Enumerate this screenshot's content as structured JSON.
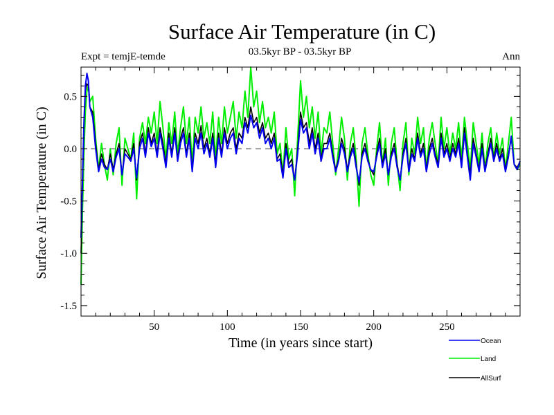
{
  "chart_data": {
    "type": "line",
    "title": "Surface Air Temperature (in C)",
    "subtitle": "03.5kyr BP - 03.5kyr BP",
    "left_label": "Expt = temjE-temde",
    "right_label": "Ann",
    "xlabel": "Time (in years since start)",
    "ylabel": "Surface Air Temperature (in C)",
    "xlim": [
      0,
      300
    ],
    "ylim": [
      -1.6,
      0.78
    ],
    "x_ticks": [
      50,
      100,
      150,
      200,
      250
    ],
    "x_tick_labels": [
      "50",
      "100",
      "150",
      "200",
      "250"
    ],
    "y_ticks": [
      0.5,
      0.0,
      -0.5,
      -1.0,
      -1.5
    ],
    "y_tick_labels": [
      "0.5",
      "0.0",
      "-0.5",
      "-1.0",
      "-1.5"
    ],
    "reference_line": 0.0,
    "legend_position": "bottom-right",
    "series": [
      {
        "name": "Land",
        "color": "#00ee00",
        "x": [
          0,
          1,
          2,
          3,
          4,
          5,
          6,
          8,
          10,
          12,
          14,
          16,
          18,
          20,
          22,
          24,
          26,
          28,
          30,
          32,
          34,
          36,
          38,
          40,
          42,
          44,
          46,
          48,
          50,
          52,
          54,
          56,
          58,
          60,
          62,
          64,
          66,
          68,
          70,
          72,
          74,
          76,
          78,
          80,
          82,
          84,
          86,
          88,
          90,
          92,
          94,
          96,
          98,
          100,
          102,
          104,
          106,
          108,
          110,
          112,
          114,
          116,
          118,
          120,
          122,
          124,
          126,
          128,
          130,
          132,
          134,
          136,
          138,
          140,
          142,
          144,
          146,
          148,
          150,
          152,
          154,
          156,
          158,
          160,
          162,
          164,
          166,
          168,
          170,
          172,
          174,
          176,
          178,
          180,
          182,
          184,
          186,
          188,
          190,
          192,
          194,
          196,
          198,
          200,
          202,
          204,
          206,
          208,
          210,
          212,
          214,
          216,
          218,
          220,
          222,
          224,
          226,
          228,
          230,
          232,
          234,
          236,
          238,
          240,
          242,
          244,
          246,
          248,
          250,
          252,
          254,
          256,
          258,
          260,
          262,
          264,
          266,
          268,
          270,
          272,
          274,
          276,
          278,
          280,
          282,
          284,
          286,
          288,
          290,
          292,
          294,
          296,
          298,
          300
        ],
        "values": [
          -1.3,
          -0.6,
          -0.05,
          0.35,
          0.55,
          0.6,
          0.45,
          0.5,
          0.1,
          -0.2,
          0.05,
          -0.15,
          -0.3,
          0.0,
          -0.25,
          0.05,
          0.2,
          -0.35,
          0.1,
          0.0,
          -0.1,
          0.15,
          -0.48,
          0.1,
          0.25,
          0.05,
          0.3,
          0.15,
          0.35,
          0.05,
          0.45,
          0.2,
          -0.1,
          0.25,
          0.05,
          0.35,
          -0.05,
          0.2,
          0.4,
          0.05,
          0.3,
          -0.15,
          0.3,
          0.15,
          0.4,
          0.1,
          0.25,
          0.05,
          0.35,
          -0.1,
          0.3,
          0.05,
          0.4,
          0.15,
          0.3,
          0.45,
          0.1,
          0.35,
          0.2,
          0.55,
          0.3,
          0.78,
          0.4,
          0.55,
          0.25,
          0.45,
          0.2,
          0.3,
          0.15,
          0.35,
          -0.05,
          0.05,
          -0.25,
          0.2,
          -0.1,
          0.0,
          -0.45,
          0.1,
          0.65,
          0.3,
          0.5,
          0.2,
          0.4,
          0.1,
          0.35,
          -0.05,
          0.2,
          0.15,
          0.35,
          0.05,
          -0.25,
          0.0,
          0.3,
          0.1,
          -0.3,
          0.05,
          0.2,
          -0.1,
          -0.55,
          0.05,
          0.2,
          -0.05,
          -0.25,
          -0.35,
          0.0,
          0.25,
          -0.15,
          0.1,
          -0.35,
          0.05,
          0.2,
          -0.15,
          -0.4,
          0.05,
          0.25,
          -0.25,
          0.1,
          -0.05,
          0.3,
          0.05,
          0.2,
          -0.2,
          0.1,
          0.25,
          0.05,
          -0.15,
          0.3,
          0.0,
          0.2,
          -0.05,
          0.15,
          0.0,
          0.25,
          -0.1,
          0.3,
          0.05,
          -0.2,
          0.25,
          0.05,
          -0.15,
          0.15,
          -0.2,
          0.05,
          0.2,
          -0.1,
          0.15,
          -0.05,
          0.1,
          -0.2,
          0.05,
          0.3,
          -0.15,
          -0.2,
          -0.15
        ]
      },
      {
        "name": "AllSurf",
        "color": "#000000",
        "x": [
          0,
          1,
          2,
          3,
          4,
          5,
          6,
          8,
          10,
          12,
          14,
          16,
          18,
          20,
          22,
          24,
          26,
          28,
          30,
          32,
          34,
          36,
          38,
          40,
          42,
          44,
          46,
          48,
          50,
          52,
          54,
          56,
          58,
          60,
          62,
          64,
          66,
          68,
          70,
          72,
          74,
          76,
          78,
          80,
          82,
          84,
          86,
          88,
          90,
          92,
          94,
          96,
          98,
          100,
          102,
          104,
          106,
          108,
          110,
          112,
          114,
          116,
          118,
          120,
          122,
          124,
          126,
          128,
          130,
          132,
          134,
          136,
          138,
          140,
          142,
          144,
          146,
          148,
          150,
          152,
          154,
          156,
          158,
          160,
          162,
          164,
          166,
          168,
          170,
          172,
          174,
          176,
          178,
          180,
          182,
          184,
          186,
          188,
          190,
          192,
          194,
          196,
          198,
          200,
          202,
          204,
          206,
          208,
          210,
          212,
          214,
          216,
          218,
          220,
          222,
          224,
          226,
          228,
          230,
          232,
          234,
          236,
          238,
          240,
          242,
          244,
          246,
          248,
          250,
          252,
          254,
          256,
          258,
          260,
          262,
          264,
          266,
          268,
          270,
          272,
          274,
          276,
          278,
          280,
          282,
          284,
          286,
          288,
          290,
          292,
          294,
          296,
          298,
          300
        ],
        "values": [
          -1.0,
          -0.35,
          0.2,
          0.55,
          0.62,
          0.6,
          0.4,
          0.35,
          0.05,
          -0.2,
          -0.05,
          -0.15,
          -0.2,
          -0.05,
          -0.2,
          -0.05,
          0.05,
          -0.25,
          0.0,
          -0.05,
          -0.1,
          0.05,
          -0.3,
          0.05,
          0.15,
          -0.05,
          0.2,
          0.05,
          0.15,
          -0.05,
          0.2,
          0.05,
          -0.15,
          0.15,
          -0.05,
          0.2,
          -0.1,
          0.1,
          0.2,
          -0.05,
          0.15,
          -0.2,
          0.15,
          0.05,
          0.22,
          0.0,
          0.1,
          -0.05,
          0.15,
          -0.15,
          0.15,
          -0.05,
          0.2,
          0.05,
          0.15,
          0.2,
          0.0,
          0.15,
          0.1,
          0.3,
          0.2,
          0.4,
          0.25,
          0.3,
          0.15,
          0.25,
          0.1,
          0.15,
          0.05,
          0.15,
          -0.1,
          -0.05,
          -0.25,
          0.05,
          -0.15,
          -0.1,
          -0.3,
          0.0,
          0.35,
          0.2,
          0.25,
          0.05,
          0.2,
          0.0,
          0.15,
          -0.1,
          0.05,
          0.05,
          0.15,
          -0.05,
          -0.2,
          -0.1,
          0.1,
          0.0,
          -0.2,
          -0.05,
          0.05,
          -0.15,
          -0.35,
          -0.05,
          0.05,
          -0.1,
          -0.2,
          -0.25,
          -0.05,
          0.1,
          -0.15,
          0.0,
          -0.25,
          -0.05,
          0.05,
          -0.15,
          -0.3,
          -0.05,
          0.1,
          -0.2,
          0.0,
          -0.1,
          0.15,
          -0.05,
          0.05,
          -0.2,
          0.0,
          0.1,
          -0.05,
          -0.15,
          0.15,
          -0.05,
          0.05,
          -0.1,
          0.05,
          -0.05,
          0.1,
          -0.15,
          0.2,
          -0.05,
          -0.25,
          0.1,
          -0.05,
          -0.2,
          0.05,
          -0.2,
          -0.05,
          0.1,
          -0.1,
          0.05,
          -0.1,
          0.0,
          -0.2,
          -0.05,
          0.1,
          -0.15,
          -0.18,
          -0.12
        ]
      },
      {
        "name": "Ocean",
        "color": "#0000ee",
        "x": [
          0,
          1,
          2,
          3,
          4,
          5,
          6,
          8,
          10,
          12,
          14,
          16,
          18,
          20,
          22,
          24,
          26,
          28,
          30,
          32,
          34,
          36,
          38,
          40,
          42,
          44,
          46,
          48,
          50,
          52,
          54,
          56,
          58,
          60,
          62,
          64,
          66,
          68,
          70,
          72,
          74,
          76,
          78,
          80,
          82,
          84,
          86,
          88,
          90,
          92,
          94,
          96,
          98,
          100,
          102,
          104,
          106,
          108,
          110,
          112,
          114,
          116,
          118,
          120,
          122,
          124,
          126,
          128,
          130,
          132,
          134,
          136,
          138,
          140,
          142,
          144,
          146,
          148,
          150,
          152,
          154,
          156,
          158,
          160,
          162,
          164,
          166,
          168,
          170,
          172,
          174,
          176,
          178,
          180,
          182,
          184,
          186,
          188,
          190,
          192,
          194,
          196,
          198,
          200,
          202,
          204,
          206,
          208,
          210,
          212,
          214,
          216,
          218,
          220,
          222,
          224,
          226,
          228,
          230,
          232,
          234,
          236,
          238,
          240,
          242,
          244,
          246,
          248,
          250,
          252,
          254,
          256,
          258,
          260,
          262,
          264,
          266,
          268,
          270,
          272,
          274,
          276,
          278,
          280,
          282,
          284,
          286,
          288,
          290,
          292,
          294,
          296,
          298,
          300
        ],
        "values": [
          -0.85,
          -0.3,
          0.25,
          0.6,
          0.72,
          0.65,
          0.4,
          0.3,
          0.0,
          -0.22,
          -0.1,
          -0.18,
          -0.2,
          -0.1,
          -0.22,
          -0.08,
          0.0,
          -0.25,
          -0.05,
          -0.08,
          -0.12,
          0.0,
          -0.28,
          0.0,
          0.1,
          -0.08,
          0.15,
          0.02,
          0.1,
          -0.08,
          0.15,
          0.0,
          -0.18,
          0.1,
          -0.08,
          0.15,
          -0.12,
          0.05,
          0.15,
          -0.08,
          0.1,
          -0.22,
          0.1,
          0.0,
          0.15,
          -0.05,
          0.05,
          -0.08,
          0.1,
          -0.18,
          0.1,
          -0.08,
          0.15,
          0.0,
          0.1,
          0.15,
          -0.05,
          0.1,
          0.05,
          0.25,
          0.15,
          0.32,
          0.2,
          0.25,
          0.1,
          0.2,
          0.05,
          0.1,
          0.0,
          0.1,
          -0.12,
          -0.1,
          -0.28,
          0.0,
          -0.18,
          -0.15,
          -0.3,
          -0.05,
          0.28,
          0.15,
          0.2,
          0.0,
          0.15,
          -0.05,
          0.1,
          -0.12,
          0.0,
          0.0,
          0.1,
          -0.08,
          -0.22,
          -0.12,
          0.05,
          -0.05,
          -0.22,
          -0.08,
          0.0,
          -0.18,
          -0.32,
          -0.08,
          0.0,
          -0.12,
          -0.2,
          -0.22,
          -0.08,
          0.05,
          -0.18,
          -0.05,
          -0.25,
          -0.08,
          0.0,
          -0.18,
          -0.3,
          -0.08,
          0.05,
          -0.22,
          -0.05,
          -0.12,
          0.1,
          -0.08,
          0.0,
          -0.22,
          -0.05,
          0.05,
          -0.08,
          -0.18,
          0.1,
          -0.08,
          0.0,
          -0.12,
          0.0,
          -0.08,
          0.05,
          -0.18,
          0.15,
          -0.08,
          -0.3,
          0.05,
          -0.08,
          -0.22,
          0.0,
          -0.22,
          -0.08,
          0.05,
          -0.12,
          0.0,
          -0.12,
          -0.05,
          -0.22,
          -0.08,
          0.12,
          -0.15,
          -0.2,
          -0.12
        ]
      }
    ],
    "legend": [
      {
        "name": "Ocean",
        "color": "#0000ee"
      },
      {
        "name": "Land",
        "color": "#00ee00"
      },
      {
        "name": "AllSurf",
        "color": "#000000"
      }
    ]
  }
}
